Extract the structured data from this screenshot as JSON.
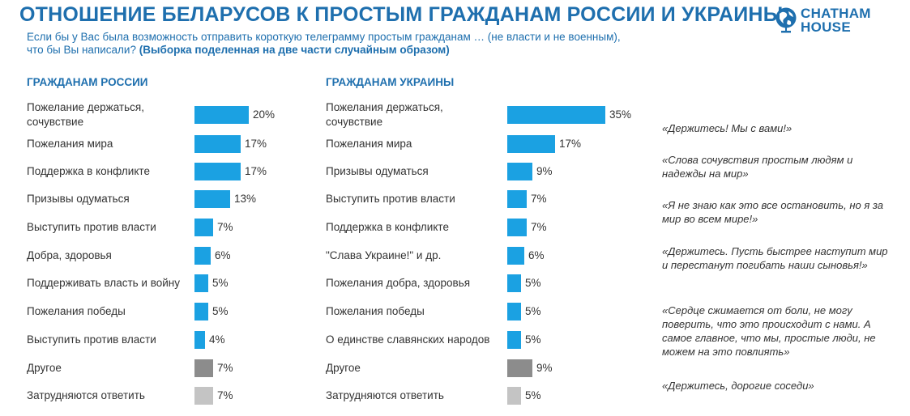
{
  "header": {
    "title": "ОТНОШЕНИЕ БЕЛАРУСОВ К ПРОСТЫМ ГРАЖДАНАМ РОССИИ И УКРАИНЫ",
    "subtitle_line1": "Если бы у Вас была возможность отправить короткую телеграмму простым гражданам … (не власти и не военным),",
    "subtitle_line2_plain": "что бы Вы написали?",
    "subtitle_line2_bold": "(Выборка поделенная на две части случайным образом)"
  },
  "logo": {
    "line1": "CHATHAM",
    "line2": "HOUSE",
    "icon": "globe-icon",
    "color": "#1e6fae"
  },
  "colors": {
    "main": "#1ba1e2",
    "other": "#8c8c8c",
    "unsure": "#c4c4c4"
  },
  "chart_data": [
    {
      "type": "bar",
      "title": "ГРАЖДАНАМ РОССИИ",
      "categories": [
        "Пожелание держаться, сочувствие",
        "Пожелания мира",
        "Поддержка в конфликте",
        "Призывы одуматься",
        "Выступить против власти",
        "Добра, здоровья",
        "Поддерживать власть и войну",
        "Пожелания победы",
        "Выступить против власти",
        "Другое",
        "Затрудняются ответить"
      ],
      "values": [
        20,
        17,
        17,
        13,
        7,
        6,
        5,
        5,
        4,
        7,
        7
      ],
      "labels": [
        "20%",
        "17%",
        "17%",
        "13%",
        "7%",
        "6%",
        "5%",
        "5%",
        "4%",
        "7%",
        "7%"
      ],
      "bar_kinds": [
        "main",
        "main",
        "main",
        "main",
        "main",
        "main",
        "main",
        "main",
        "main",
        "other",
        "unsure"
      ]
    },
    {
      "type": "bar",
      "title": "ГРАЖДАНАМ УКРАИНЫ",
      "categories": [
        "Пожелания держаться, сочувствие",
        "Пожелания мира",
        "Призывы одуматься",
        "Выступить против власти",
        "Поддержка в конфликте",
        "\"Слава Украине!\" и др.",
        "Пожелания добра, здоровья",
        "Пожелания победы",
        "О единстве славянских народов",
        "Другое",
        "Затрудняются ответить"
      ],
      "values": [
        35,
        17,
        9,
        7,
        7,
        6,
        5,
        5,
        5,
        9,
        5
      ],
      "labels": [
        "35%",
        "17%",
        "9%",
        "7%",
        "7%",
        "6%",
        "5%",
        "5%",
        "5%",
        "9%",
        "5%"
      ],
      "bar_kinds": [
        "main",
        "main",
        "main",
        "main",
        "main",
        "main",
        "main",
        "main",
        "main",
        "other",
        "unsure"
      ]
    }
  ],
  "quotes": [
    "«Держитесь! Мы с вами!»",
    "«Слова сочувствия простым людям и надежды на мир»",
    "«Я не знаю как это все остановить, но я за мир во всем мире!»",
    "«Держитесь. Пусть быстрее наступит мир и перестанут погибать наши сыновья!»",
    "«Сердце сжимается от боли, не могу поверить, что это происходит с нами. А самое главное, что мы, простые люди, не можем на это повлиять»",
    "«Держитесь, дорогие соседи»"
  ]
}
